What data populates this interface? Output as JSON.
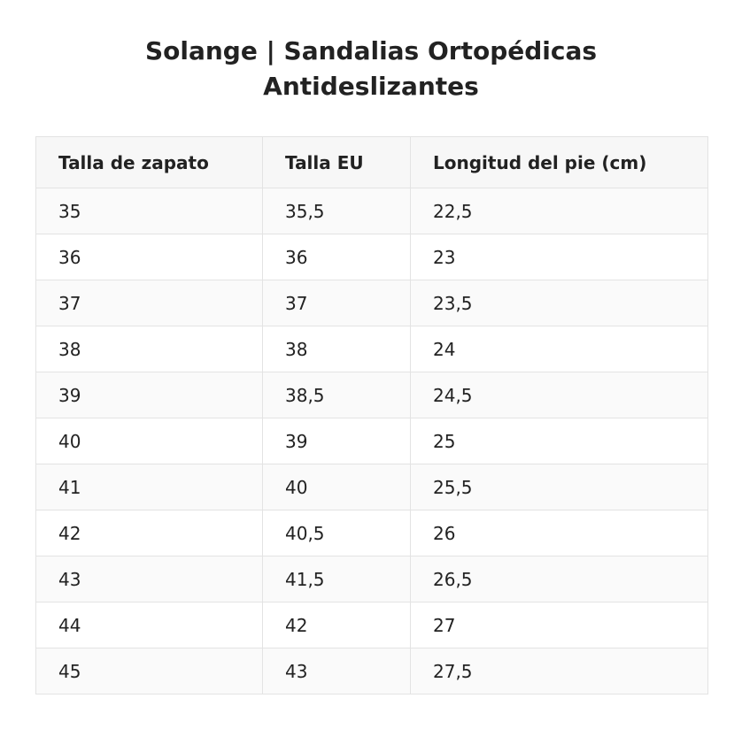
{
  "title": {
    "line1": "Solange | Sandalias Ortopédicas",
    "line2": "Antideslizantes"
  },
  "table": {
    "headers": [
      "Talla de zapato",
      "Talla EU",
      "Longitud del pie (cm)"
    ],
    "rows": [
      [
        "35",
        "35,5",
        "22,5"
      ],
      [
        "36",
        "36",
        "23"
      ],
      [
        "37",
        "37",
        "23,5"
      ],
      [
        "38",
        "38",
        "24"
      ],
      [
        "39",
        "38,5",
        "24,5"
      ],
      [
        "40",
        "39",
        "25"
      ],
      [
        "41",
        "40",
        "25,5"
      ],
      [
        "42",
        "40,5",
        "26"
      ],
      [
        "43",
        "41,5",
        "26,5"
      ],
      [
        "44",
        "42",
        "27"
      ],
      [
        "45",
        "43",
        "27,5"
      ]
    ]
  },
  "colors": {
    "text": "#222222",
    "header_bg": "#f7f7f7",
    "row_alt_bg": "#fafafa",
    "border": "#e3e3e3"
  }
}
